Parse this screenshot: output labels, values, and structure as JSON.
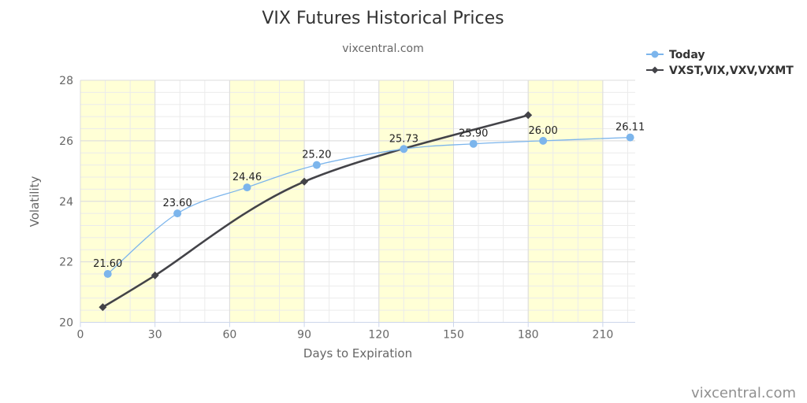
{
  "chart_data": {
    "type": "line",
    "title": "VIX Futures Historical Prices",
    "subtitle": "vixcentral.com",
    "xlabel": "Days to Expiration",
    "ylabel": "Volatility",
    "xlim": [
      0,
      220
    ],
    "ylim": [
      20,
      28
    ],
    "xticks": [
      0,
      30,
      60,
      90,
      120,
      150,
      180,
      210
    ],
    "yticks": [
      20,
      22,
      24,
      26,
      28
    ],
    "highlight_bands": [
      [
        0,
        30
      ],
      [
        60,
        90
      ],
      [
        120,
        150
      ],
      [
        180,
        210
      ]
    ],
    "grid": true,
    "legend_position": "top-right",
    "series": [
      {
        "name": "Today",
        "color": "#7cb5ec",
        "marker": "circle",
        "smooth": true,
        "show_labels": true,
        "points": [
          {
            "x": 11,
            "y": 21.6,
            "label": "21.60"
          },
          {
            "x": 39,
            "y": 23.6,
            "label": "23.60"
          },
          {
            "x": 67,
            "y": 24.46,
            "label": "24.46"
          },
          {
            "x": 95,
            "y": 25.2,
            "label": "25.20"
          },
          {
            "x": 130,
            "y": 25.73,
            "label": "25.73"
          },
          {
            "x": 158,
            "y": 25.9,
            "label": "25.90"
          },
          {
            "x": 186,
            "y": 26.0,
            "label": "26.00"
          },
          {
            "x": 221,
            "y": 26.11,
            "label": "26.11"
          }
        ]
      },
      {
        "name": "VXST,VIX,VXV,VXMT",
        "color": "#434348",
        "marker": "diamond",
        "smooth": true,
        "show_labels": false,
        "points": [
          {
            "x": 9,
            "y": 20.5
          },
          {
            "x": 30,
            "y": 21.55
          },
          {
            "x": 90,
            "y": 24.65
          },
          {
            "x": 180,
            "y": 26.85
          }
        ]
      }
    ]
  },
  "credit": "vixcentral.com"
}
